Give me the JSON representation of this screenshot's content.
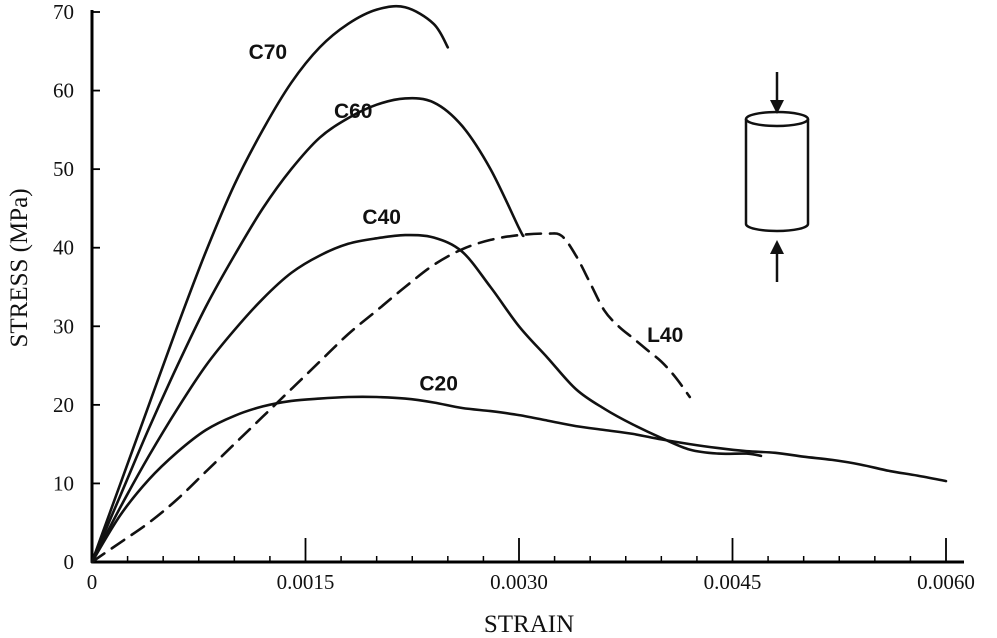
{
  "chart_data": {
    "type": "line",
    "title": "",
    "xlabel": "STRAIN",
    "ylabel": "STRESS (MPa)",
    "xlim": [
      0,
      0.006
    ],
    "ylim": [
      0,
      70
    ],
    "x_ticks": [
      0,
      0.0015,
      0.003,
      0.0045,
      0.006
    ],
    "x_tick_labels": [
      "0",
      "0.0015",
      "0.0030",
      "0.0045",
      "0.0060"
    ],
    "y_ticks": [
      0,
      10,
      20,
      30,
      40,
      50,
      60,
      70
    ],
    "y_tick_labels": [
      "0",
      "10",
      "20",
      "30",
      "40",
      "50",
      "60",
      "70"
    ],
    "grid": false,
    "legend": "none",
    "series": [
      {
        "name": "C70",
        "style": "solid",
        "points": [
          [
            0,
            0
          ],
          [
            0.0002,
            10
          ],
          [
            0.0004,
            20
          ],
          [
            0.0006,
            30
          ],
          [
            0.0008,
            39.5
          ],
          [
            0.001,
            48
          ],
          [
            0.0012,
            55
          ],
          [
            0.0014,
            61
          ],
          [
            0.0016,
            65.5
          ],
          [
            0.0018,
            68.5
          ],
          [
            0.002,
            70.3
          ],
          [
            0.0022,
            70.6
          ],
          [
            0.0024,
            68.5
          ],
          [
            0.0025,
            65.5
          ]
        ]
      },
      {
        "name": "C60",
        "style": "solid",
        "points": [
          [
            0,
            0
          ],
          [
            0.0002,
            8.5
          ],
          [
            0.0004,
            17
          ],
          [
            0.0006,
            25
          ],
          [
            0.0008,
            32.5
          ],
          [
            0.001,
            39
          ],
          [
            0.0012,
            45
          ],
          [
            0.0014,
            50
          ],
          [
            0.0016,
            54
          ],
          [
            0.0018,
            56.5
          ],
          [
            0.002,
            58.2
          ],
          [
            0.0022,
            59
          ],
          [
            0.0024,
            58.5
          ],
          [
            0.0026,
            55.5
          ],
          [
            0.0028,
            50
          ],
          [
            0.003,
            42.5
          ],
          [
            0.00303,
            41.5
          ]
        ]
      },
      {
        "name": "C40",
        "style": "solid",
        "points": [
          [
            0,
            0
          ],
          [
            0.0002,
            7
          ],
          [
            0.0004,
            13.5
          ],
          [
            0.0006,
            19.5
          ],
          [
            0.0008,
            25
          ],
          [
            0.001,
            29.5
          ],
          [
            0.0012,
            33.5
          ],
          [
            0.0014,
            36.8
          ],
          [
            0.0016,
            39
          ],
          [
            0.0018,
            40.5
          ],
          [
            0.002,
            41.2
          ],
          [
            0.0022,
            41.6
          ],
          [
            0.0024,
            41.3
          ],
          [
            0.0026,
            39.5
          ],
          [
            0.0028,
            35
          ],
          [
            0.003,
            30
          ],
          [
            0.0032,
            26
          ],
          [
            0.0034,
            22
          ],
          [
            0.0036,
            19.5
          ],
          [
            0.0038,
            17.5
          ],
          [
            0.004,
            15.8
          ],
          [
            0.0042,
            14.3
          ],
          [
            0.0044,
            13.8
          ],
          [
            0.0046,
            13.8
          ],
          [
            0.0047,
            13.5
          ]
        ]
      },
      {
        "name": "C20",
        "style": "solid",
        "points": [
          [
            0,
            0
          ],
          [
            0.0002,
            6
          ],
          [
            0.0004,
            10.5
          ],
          [
            0.0006,
            14
          ],
          [
            0.0008,
            16.8
          ],
          [
            0.001,
            18.6
          ],
          [
            0.0012,
            19.8
          ],
          [
            0.0014,
            20.5
          ],
          [
            0.0016,
            20.8
          ],
          [
            0.0018,
            21
          ],
          [
            0.002,
            21
          ],
          [
            0.0022,
            20.8
          ],
          [
            0.0024,
            20.3
          ],
          [
            0.0026,
            19.6
          ],
          [
            0.0028,
            19.2
          ],
          [
            0.003,
            18.7
          ],
          [
            0.0032,
            18
          ],
          [
            0.0034,
            17.3
          ],
          [
            0.0036,
            16.8
          ],
          [
            0.0038,
            16.3
          ],
          [
            0.004,
            15.6
          ],
          [
            0.0042,
            15
          ],
          [
            0.0044,
            14.5
          ],
          [
            0.0046,
            14.1
          ],
          [
            0.0048,
            13.9
          ],
          [
            0.005,
            13.4
          ],
          [
            0.0052,
            13
          ],
          [
            0.0054,
            12.4
          ],
          [
            0.0056,
            11.6
          ],
          [
            0.0058,
            11
          ],
          [
            0.006,
            10.3
          ]
        ]
      },
      {
        "name": "L40",
        "style": "dashed",
        "points": [
          [
            0,
            0
          ],
          [
            0.0002,
            2.5
          ],
          [
            0.0004,
            5
          ],
          [
            0.0006,
            8
          ],
          [
            0.0008,
            11.5
          ],
          [
            0.001,
            15
          ],
          [
            0.0012,
            18.5
          ],
          [
            0.0014,
            22
          ],
          [
            0.0016,
            25.5
          ],
          [
            0.0018,
            29
          ],
          [
            0.002,
            32
          ],
          [
            0.0022,
            35
          ],
          [
            0.0024,
            37.8
          ],
          [
            0.0026,
            39.8
          ],
          [
            0.0028,
            41
          ],
          [
            0.003,
            41.6
          ],
          [
            0.0032,
            41.8
          ],
          [
            0.0033,
            41.5
          ],
          [
            0.0034,
            39
          ],
          [
            0.0035,
            35.5
          ],
          [
            0.0036,
            32
          ],
          [
            0.0037,
            30
          ],
          [
            0.0038,
            28.5
          ],
          [
            0.0039,
            27
          ],
          [
            0.004,
            25.5
          ],
          [
            0.0041,
            23.5
          ],
          [
            0.0042,
            21
          ]
        ]
      }
    ]
  }
}
